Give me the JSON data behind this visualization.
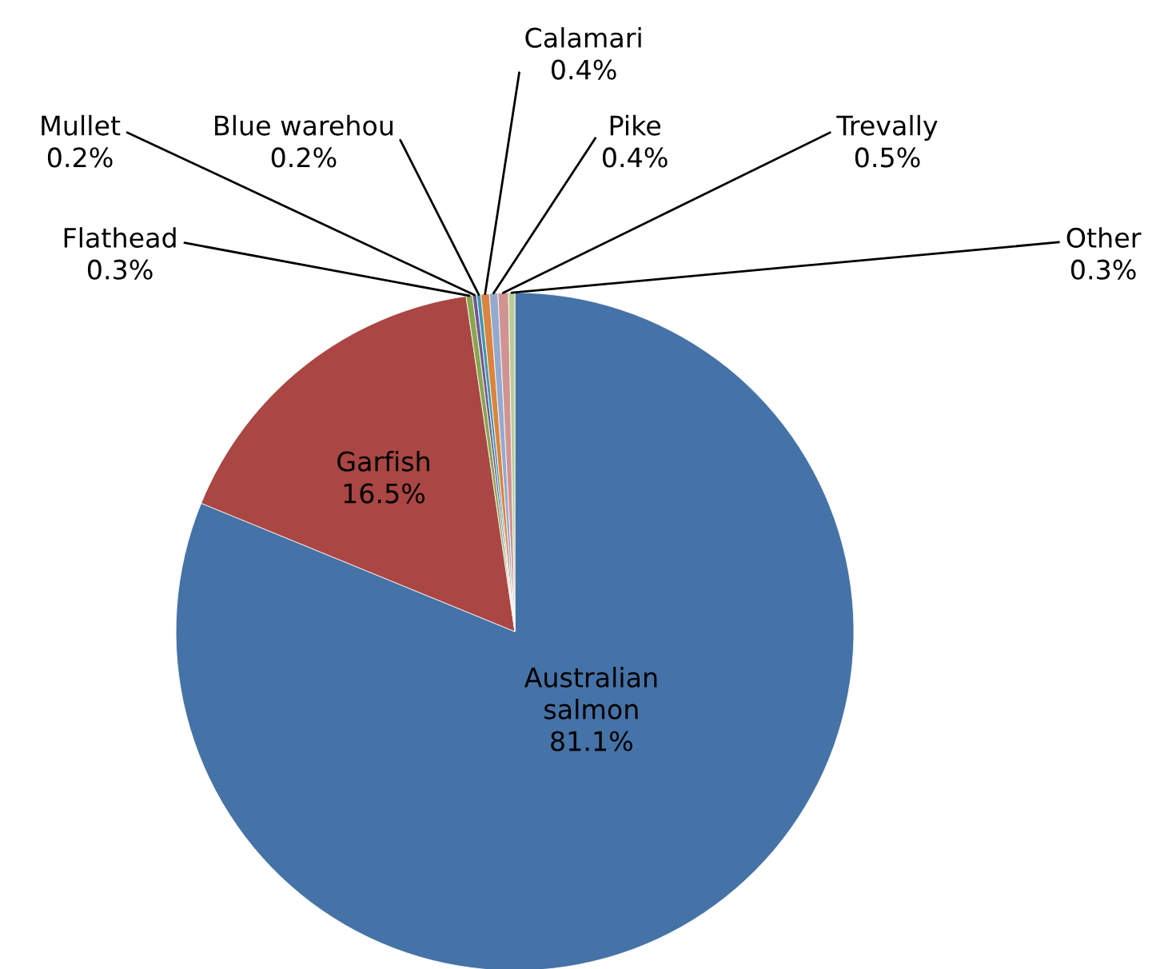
{
  "chart_data": {
    "type": "pie",
    "categories": [
      "Australian salmon",
      "Garfish",
      "Flathead",
      "Mullet",
      "Blue warehou",
      "Calamari",
      "Pike",
      "Trevally",
      "Other"
    ],
    "values": [
      81.1,
      16.5,
      0.3,
      0.2,
      0.2,
      0.4,
      0.4,
      0.5,
      0.3
    ],
    "colors": [
      "#4572a7",
      "#aa4643",
      "#89a54e",
      "#71588f",
      "#4198af",
      "#db843d",
      "#93a9cf",
      "#d19392",
      "#b9cd96"
    ],
    "value_labels": [
      "81.1%",
      "16.5%",
      "0.3%",
      "0.2%",
      "0.2%",
      "0.4%",
      "0.4%",
      "0.5%",
      "0.3%"
    ],
    "legend": false
  }
}
